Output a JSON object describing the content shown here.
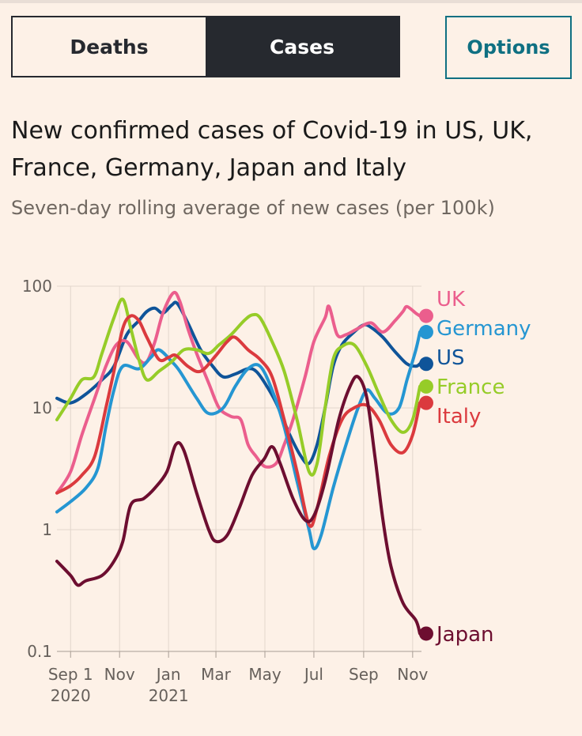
{
  "tabs": {
    "deaths_label": "Deaths",
    "cases_label": "Cases",
    "active": "Cases"
  },
  "options_label": "Options",
  "title": "New confirmed cases of Covid-19 in US, UK, France, Germany, Japan and Italy",
  "subtitle": "Seven-day rolling average of new cases (per 100k)",
  "colors": {
    "background": "#fdf1e7",
    "tab_active_bg": "#26292f",
    "accent": "#0f7082",
    "UK": "#eb5e8d",
    "Germany": "#2596d2",
    "US": "#0f5499",
    "France": "#96cc28",
    "Italy": "#db3a3e",
    "Japan": "#6d0e30"
  },
  "chart_data": {
    "type": "line",
    "title": "New confirmed cases of Covid-19 in US, UK, France, Germany, Japan and Italy",
    "subtitle": "Seven-day rolling average of new cases (per 100k)",
    "y_scale": "log",
    "ylim": [
      0.1,
      100
    ],
    "y_ticks": [
      {
        "value": 100,
        "label": "100"
      },
      {
        "value": 10,
        "label": "10"
      },
      {
        "value": 1,
        "label": "1"
      },
      {
        "value": 0.1,
        "label": "0.1"
      }
    ],
    "xlim": [
      "2020-08-15",
      "2021-11-12"
    ],
    "x_ticks": [
      {
        "date": "2020-09-01",
        "line1": "Sep 1",
        "line2": "2020"
      },
      {
        "date": "2020-11-01",
        "line1": "Nov",
        "line2": ""
      },
      {
        "date": "2021-01-01",
        "line1": "Jan",
        "line2": "2021"
      },
      {
        "date": "2021-03-01",
        "line1": "Mar",
        "line2": ""
      },
      {
        "date": "2021-05-01",
        "line1": "May",
        "line2": ""
      },
      {
        "date": "2021-07-01",
        "line1": "Jul",
        "line2": ""
      },
      {
        "date": "2021-09-01",
        "line1": "Sep",
        "line2": ""
      },
      {
        "date": "2021-11-01",
        "line1": "Nov",
        "line2": ""
      }
    ],
    "grid": "vertical at x ticks and horizontal at y ticks",
    "legend": "right, labels at line ends",
    "series": [
      {
        "name": "US",
        "color": "#0f5499",
        "points": [
          [
            "2020-08-15",
            12
          ],
          [
            "2020-09-01",
            11
          ],
          [
            "2020-09-20",
            13
          ],
          [
            "2020-10-10",
            17
          ],
          [
            "2020-10-25",
            22
          ],
          [
            "2020-11-10",
            40
          ],
          [
            "2020-11-25",
            52
          ],
          [
            "2020-12-05",
            62
          ],
          [
            "2020-12-15",
            66
          ],
          [
            "2020-12-25",
            60
          ],
          [
            "2021-01-05",
            70
          ],
          [
            "2021-01-12",
            72
          ],
          [
            "2021-01-25",
            50
          ],
          [
            "2021-02-10",
            30
          ],
          [
            "2021-02-25",
            22
          ],
          [
            "2021-03-10",
            18
          ],
          [
            "2021-03-25",
            19
          ],
          [
            "2021-04-10",
            21
          ],
          [
            "2021-04-20",
            20
          ],
          [
            "2021-05-01",
            16
          ],
          [
            "2021-05-15",
            11
          ],
          [
            "2021-06-01",
            6
          ],
          [
            "2021-06-15",
            4
          ],
          [
            "2021-06-25",
            3.5
          ],
          [
            "2021-07-05",
            5
          ],
          [
            "2021-07-15",
            10
          ],
          [
            "2021-07-25",
            22
          ],
          [
            "2021-08-05",
            33
          ],
          [
            "2021-08-20",
            42
          ],
          [
            "2021-09-01",
            48
          ],
          [
            "2021-09-10",
            46
          ],
          [
            "2021-09-25",
            38
          ],
          [
            "2021-10-10",
            29
          ],
          [
            "2021-10-25",
            23
          ],
          [
            "2021-11-05",
            22
          ],
          [
            "2021-11-10",
            23
          ]
        ]
      },
      {
        "name": "UK",
        "color": "#eb5e8d",
        "points": [
          [
            "2020-08-15",
            2
          ],
          [
            "2020-09-01",
            3
          ],
          [
            "2020-09-15",
            6
          ],
          [
            "2020-10-01",
            12
          ],
          [
            "2020-10-15",
            22
          ],
          [
            "2020-10-28",
            33
          ],
          [
            "2020-11-10",
            35
          ],
          [
            "2020-11-25",
            25
          ],
          [
            "2020-12-05",
            24
          ],
          [
            "2020-12-15",
            35
          ],
          [
            "2020-12-25",
            60
          ],
          [
            "2021-01-07",
            88
          ],
          [
            "2021-01-15",
            75
          ],
          [
            "2021-01-25",
            45
          ],
          [
            "2021-02-05",
            28
          ],
          [
            "2021-02-20",
            16
          ],
          [
            "2021-03-05",
            10
          ],
          [
            "2021-03-20",
            8.5
          ],
          [
            "2021-04-01",
            8
          ],
          [
            "2021-04-10",
            5
          ],
          [
            "2021-04-20",
            4
          ],
          [
            "2021-05-01",
            3.3
          ],
          [
            "2021-05-15",
            3.5
          ],
          [
            "2021-05-25",
            5
          ],
          [
            "2021-06-05",
            8
          ],
          [
            "2021-06-20",
            18
          ],
          [
            "2021-07-01",
            35
          ],
          [
            "2021-07-15",
            55
          ],
          [
            "2021-07-20",
            68
          ],
          [
            "2021-07-30",
            40
          ],
          [
            "2021-08-10",
            40
          ],
          [
            "2021-08-25",
            45
          ],
          [
            "2021-09-10",
            50
          ],
          [
            "2021-09-25",
            42
          ],
          [
            "2021-10-10",
            52
          ],
          [
            "2021-10-20",
            62
          ],
          [
            "2021-10-25",
            68
          ],
          [
            "2021-11-05",
            60
          ],
          [
            "2021-11-10",
            57
          ]
        ]
      },
      {
        "name": "Germany",
        "color": "#2596d2",
        "points": [
          [
            "2020-08-15",
            1.4
          ],
          [
            "2020-09-01",
            1.7
          ],
          [
            "2020-09-20",
            2.2
          ],
          [
            "2020-10-05",
            3.2
          ],
          [
            "2020-10-15",
            7
          ],
          [
            "2020-10-25",
            14
          ],
          [
            "2020-11-05",
            22
          ],
          [
            "2020-11-25",
            21
          ],
          [
            "2020-12-10",
            26
          ],
          [
            "2020-12-20",
            30
          ],
          [
            "2021-01-05",
            24
          ],
          [
            "2021-01-15",
            20
          ],
          [
            "2021-02-05",
            12
          ],
          [
            "2021-02-20",
            9
          ],
          [
            "2021-03-10",
            10
          ],
          [
            "2021-03-25",
            15
          ],
          [
            "2021-04-10",
            21
          ],
          [
            "2021-04-25",
            22
          ],
          [
            "2021-05-10",
            14
          ],
          [
            "2021-05-25",
            7
          ],
          [
            "2021-06-10",
            2.5
          ],
          [
            "2021-06-25",
            1
          ],
          [
            "2021-07-01",
            0.7
          ],
          [
            "2021-07-10",
            0.9
          ],
          [
            "2021-07-25",
            2.2
          ],
          [
            "2021-08-10",
            5
          ],
          [
            "2021-08-25",
            10
          ],
          [
            "2021-09-05",
            14
          ],
          [
            "2021-09-15",
            12
          ],
          [
            "2021-10-01",
            9
          ],
          [
            "2021-10-15",
            10
          ],
          [
            "2021-10-25",
            17
          ],
          [
            "2021-11-05",
            30
          ],
          [
            "2021-11-10",
            42
          ]
        ]
      },
      {
        "name": "France",
        "color": "#96cc28",
        "points": [
          [
            "2020-08-15",
            8
          ],
          [
            "2020-09-01",
            12
          ],
          [
            "2020-09-15",
            17
          ],
          [
            "2020-09-30",
            18
          ],
          [
            "2020-10-10",
            28
          ],
          [
            "2020-10-25",
            55
          ],
          [
            "2020-11-05",
            78
          ],
          [
            "2020-11-15",
            45
          ],
          [
            "2020-11-25",
            25
          ],
          [
            "2020-12-05",
            17
          ],
          [
            "2020-12-20",
            20
          ],
          [
            "2021-01-05",
            24
          ],
          [
            "2021-01-20",
            30
          ],
          [
            "2021-02-05",
            30
          ],
          [
            "2021-02-20",
            28
          ],
          [
            "2021-03-05",
            33
          ],
          [
            "2021-03-20",
            40
          ],
          [
            "2021-04-05",
            52
          ],
          [
            "2021-04-15",
            58
          ],
          [
            "2021-04-25",
            55
          ],
          [
            "2021-05-10",
            35
          ],
          [
            "2021-05-25",
            20
          ],
          [
            "2021-06-10",
            8
          ],
          [
            "2021-06-25",
            3
          ],
          [
            "2021-07-05",
            3.5
          ],
          [
            "2021-07-15",
            10
          ],
          [
            "2021-07-25",
            25
          ],
          [
            "2021-08-05",
            32
          ],
          [
            "2021-08-20",
            33
          ],
          [
            "2021-09-05",
            22
          ],
          [
            "2021-09-20",
            13
          ],
          [
            "2021-10-05",
            8
          ],
          [
            "2021-10-20",
            6.3
          ],
          [
            "2021-11-01",
            8
          ],
          [
            "2021-11-10",
            15
          ]
        ]
      },
      {
        "name": "Italy",
        "color": "#db3a3e",
        "points": [
          [
            "2020-08-15",
            2
          ],
          [
            "2020-09-01",
            2.3
          ],
          [
            "2020-09-15",
            2.8
          ],
          [
            "2020-10-01",
            4
          ],
          [
            "2020-10-15",
            10
          ],
          [
            "2020-10-25",
            20
          ],
          [
            "2020-11-05",
            45
          ],
          [
            "2020-11-15",
            57
          ],
          [
            "2020-11-25",
            52
          ],
          [
            "2020-12-05",
            38
          ],
          [
            "2020-12-20",
            25
          ],
          [
            "2021-01-01",
            26
          ],
          [
            "2021-01-10",
            27
          ],
          [
            "2021-01-25",
            22
          ],
          [
            "2021-02-10",
            20
          ],
          [
            "2021-03-01",
            27
          ],
          [
            "2021-03-15",
            35
          ],
          [
            "2021-03-25",
            38
          ],
          [
            "2021-04-10",
            30
          ],
          [
            "2021-04-25",
            25
          ],
          [
            "2021-05-10",
            18
          ],
          [
            "2021-05-25",
            8
          ],
          [
            "2021-06-10",
            3
          ],
          [
            "2021-06-25",
            1.1
          ],
          [
            "2021-07-05",
            1.5
          ],
          [
            "2021-07-20",
            4
          ],
          [
            "2021-08-05",
            8
          ],
          [
            "2021-08-20",
            10
          ],
          [
            "2021-09-05",
            10.5
          ],
          [
            "2021-09-20",
            8
          ],
          [
            "2021-10-05",
            5
          ],
          [
            "2021-10-20",
            4.3
          ],
          [
            "2021-11-01",
            6
          ],
          [
            "2021-11-10",
            11
          ]
        ]
      },
      {
        "name": "Japan",
        "color": "#6d0e30",
        "points": [
          [
            "2020-08-15",
            0.55
          ],
          [
            "2020-09-01",
            0.42
          ],
          [
            "2020-09-10",
            0.35
          ],
          [
            "2020-09-20",
            0.38
          ],
          [
            "2020-10-10",
            0.42
          ],
          [
            "2020-10-25",
            0.55
          ],
          [
            "2020-11-05",
            0.8
          ],
          [
            "2020-11-15",
            1.6
          ],
          [
            "2020-12-01",
            1.8
          ],
          [
            "2020-12-15",
            2.2
          ],
          [
            "2020-12-30",
            3
          ],
          [
            "2021-01-10",
            5
          ],
          [
            "2021-01-20",
            4.5
          ],
          [
            "2021-02-05",
            2
          ],
          [
            "2021-02-20",
            1
          ],
          [
            "2021-03-01",
            0.8
          ],
          [
            "2021-03-15",
            0.9
          ],
          [
            "2021-03-30",
            1.5
          ],
          [
            "2021-04-15",
            2.8
          ],
          [
            "2021-04-30",
            3.8
          ],
          [
            "2021-05-10",
            4.8
          ],
          [
            "2021-05-20",
            3.5
          ],
          [
            "2021-06-05",
            1.8
          ],
          [
            "2021-06-20",
            1.2
          ],
          [
            "2021-07-01",
            1.3
          ],
          [
            "2021-07-15",
            2.5
          ],
          [
            "2021-08-01",
            8
          ],
          [
            "2021-08-15",
            15
          ],
          [
            "2021-08-25",
            18
          ],
          [
            "2021-09-05",
            12
          ],
          [
            "2021-09-15",
            4
          ],
          [
            "2021-09-25",
            1.2
          ],
          [
            "2021-10-05",
            0.5
          ],
          [
            "2021-10-20",
            0.25
          ],
          [
            "2021-11-05",
            0.18
          ],
          [
            "2021-11-10",
            0.14
          ]
        ]
      }
    ]
  }
}
